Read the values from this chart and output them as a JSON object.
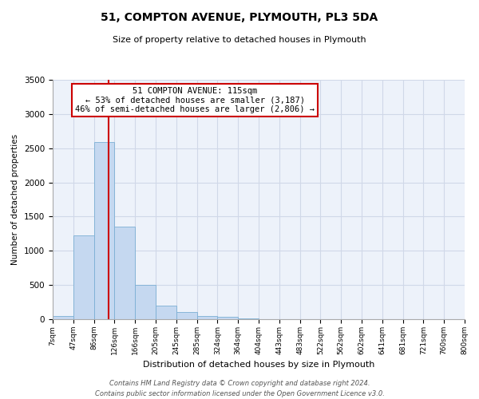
{
  "title": "51, COMPTON AVENUE, PLYMOUTH, PL3 5DA",
  "subtitle": "Size of property relative to detached houses in Plymouth",
  "xlabel": "Distribution of detached houses by size in Plymouth",
  "ylabel": "Number of detached properties",
  "bin_labels": [
    "7sqm",
    "47sqm",
    "86sqm",
    "126sqm",
    "166sqm",
    "205sqm",
    "245sqm",
    "285sqm",
    "324sqm",
    "364sqm",
    "404sqm",
    "443sqm",
    "483sqm",
    "522sqm",
    "562sqm",
    "602sqm",
    "641sqm",
    "681sqm",
    "721sqm",
    "760sqm",
    "800sqm"
  ],
  "bar_values": [
    50,
    1230,
    2590,
    1350,
    500,
    200,
    110,
    50,
    30,
    10,
    5,
    2,
    1,
    0,
    0,
    0,
    0,
    0,
    0,
    0
  ],
  "bar_color": "#c5d8f0",
  "bar_edge_color": "#7bafd4",
  "annotation_title": "51 COMPTON AVENUE: 115sqm",
  "annotation_line1": "← 53% of detached houses are smaller (3,187)",
  "annotation_line2": "46% of semi-detached houses are larger (2,806) →",
  "annotation_box_color": "#ffffff",
  "annotation_box_edge_color": "#cc0000",
  "vline_color": "#cc0000",
  "ylim": [
    0,
    3500
  ],
  "yticks": [
    0,
    500,
    1000,
    1500,
    2000,
    2500,
    3000,
    3500
  ],
  "grid_color": "#d0d8e8",
  "bg_color": "#edf2fa",
  "footer1": "Contains HM Land Registry data © Crown copyright and database right 2024.",
  "footer2": "Contains public sector information licensed under the Open Government Licence v3.0.",
  "bin_edges": [
    7,
    47,
    86,
    126,
    166,
    205,
    245,
    285,
    324,
    364,
    404,
    443,
    483,
    522,
    562,
    602,
    641,
    681,
    721,
    760,
    800
  ],
  "prop_sqm": 115
}
